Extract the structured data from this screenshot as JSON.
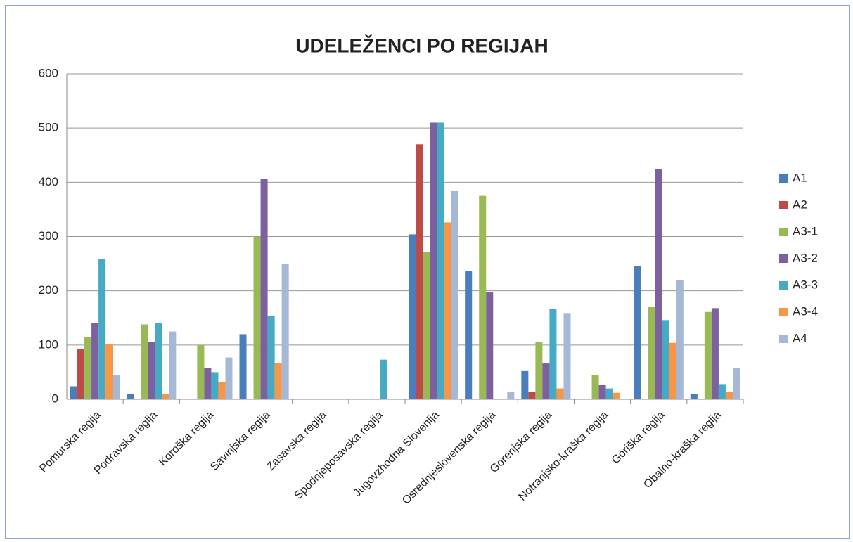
{
  "chart_data": {
    "type": "bar",
    "title": "UDELEŽENCI PO REGIJAH",
    "categories": [
      "Pomurska regija",
      "Podravska regija",
      "Koroška regija",
      "Savinjska regija",
      "Zasavska regija",
      "Spodnjeposavska regija",
      "Jugovzhodna Slovenija",
      "Osrednjeslovenska regija",
      "Gorenjska regija",
      "Notranjsko-kraška regija",
      "Goriška regija",
      "Obalno-kraška regija"
    ],
    "series": [
      {
        "name": "A1",
        "color": "#4a7ebb",
        "values": [
          24,
          10,
          0,
          120,
          0,
          0,
          304,
          236,
          52,
          0,
          245,
          10
        ]
      },
      {
        "name": "A2",
        "color": "#be4b48",
        "values": [
          92,
          0,
          0,
          0,
          0,
          0,
          470,
          0,
          13,
          0,
          0,
          0
        ]
      },
      {
        "name": "A3-1",
        "color": "#98b954",
        "values": [
          115,
          138,
          100,
          300,
          0,
          0,
          272,
          375,
          106,
          45,
          171,
          161
        ]
      },
      {
        "name": "A3-2",
        "color": "#7d60a0",
        "values": [
          140,
          105,
          58,
          406,
          0,
          0,
          510,
          198,
          66,
          26,
          424,
          168
        ]
      },
      {
        "name": "A3-3",
        "color": "#46aac5",
        "values": [
          258,
          141,
          50,
          153,
          0,
          73,
          510,
          0,
          167,
          20,
          146,
          28
        ]
      },
      {
        "name": "A3-4",
        "color": "#f79646",
        "values": [
          101,
          10,
          32,
          67,
          0,
          0,
          326,
          0,
          20,
          12,
          104,
          13
        ]
      },
      {
        "name": "A4",
        "color": "#a5b9d7",
        "values": [
          45,
          125,
          77,
          250,
          0,
          0,
          384,
          13,
          159,
          0,
          219,
          57
        ]
      }
    ],
    "ylim": [
      0,
      600
    ],
    "yticks": [
      0,
      100,
      200,
      300,
      400,
      500,
      600
    ],
    "grid": true,
    "legend": "right"
  }
}
